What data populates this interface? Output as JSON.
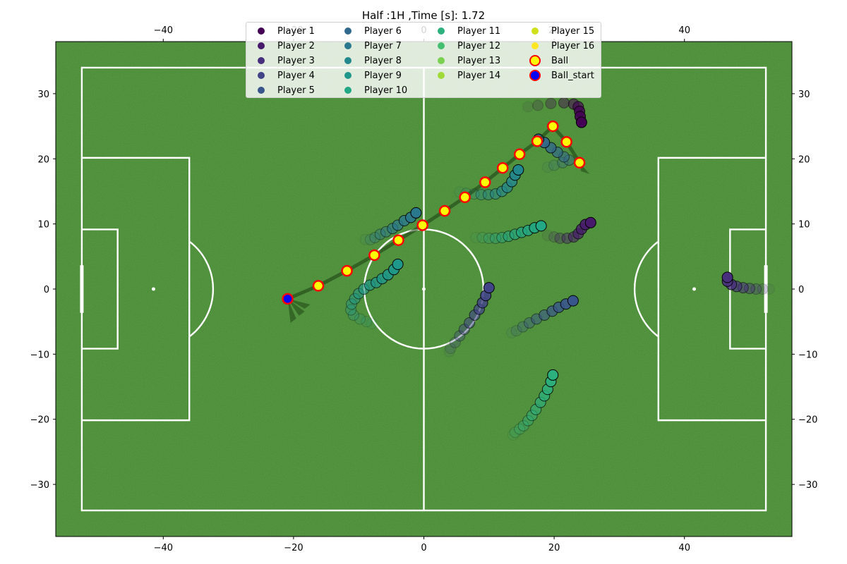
{
  "chart_data": {
    "type": "scatter",
    "title": "Half :1H ,Time [s]: 1.72",
    "xlim": [
      -56.5,
      56.5
    ],
    "ylim": [
      -38,
      38
    ],
    "x_ticks": [
      -40,
      -20,
      0,
      20,
      40
    ],
    "y_ticks": [
      -30,
      -20,
      -10,
      0,
      10,
      20,
      30
    ],
    "x_tick_labels": [
      "−40",
      "−20",
      "0",
      "20",
      "40"
    ],
    "y_tick_labels": [
      "−30",
      "−20",
      "−10",
      "0",
      "10",
      "20",
      "30"
    ],
    "grid": false,
    "legend_placement": "upper-center",
    "legend_columns": 4,
    "pitch": {
      "field_color": "#438a30",
      "line_color": "#ffffff",
      "length": 105,
      "width": 68,
      "center_circle_radius": 9.15,
      "penalty_box": {
        "depth": 16.5,
        "width": 40.3
      },
      "goal_box": {
        "depth": 5.5,
        "width": 18.3
      },
      "penalty_spot": 11,
      "goal_width": 7.32
    },
    "series": [
      {
        "name": "Player 1",
        "color": "#440154",
        "path": [
          [
            24.2,
            25.6
          ],
          [
            24.0,
            26.5
          ],
          [
            23.9,
            27.3
          ],
          [
            23.7,
            28.0
          ],
          [
            23.0,
            28.4
          ],
          [
            21.5,
            28.6
          ],
          [
            19.5,
            28.5
          ],
          [
            17.5,
            28.2
          ],
          [
            16.0,
            28.0
          ]
        ]
      },
      {
        "name": "Player 2",
        "color": "#481a6c",
        "path": [
          [
            25.6,
            10.2
          ],
          [
            24.8,
            9.9
          ],
          [
            24.2,
            9.2
          ],
          [
            23.7,
            8.5
          ],
          [
            23.0,
            8.0
          ],
          [
            22.0,
            7.8
          ],
          [
            20.9,
            7.8
          ],
          [
            20.0,
            8.0
          ],
          [
            19.0,
            8.2
          ]
        ]
      },
      {
        "name": "Player 3",
        "color": "#472f7d",
        "path": [
          [
            46.6,
            1.8
          ],
          [
            46.6,
            1.2
          ],
          [
            47.2,
            0.7
          ],
          [
            48.0,
            0.4
          ],
          [
            49.0,
            0.2
          ],
          [
            50.0,
            0.1
          ],
          [
            51.0,
            0.0
          ],
          [
            52.0,
            0.0
          ],
          [
            53.0,
            0.0
          ]
        ]
      },
      {
        "name": "Player 4",
        "color": "#414487",
        "path": [
          [
            10.0,
            0.2
          ],
          [
            9.5,
            -1.0
          ],
          [
            9.0,
            -2.1
          ],
          [
            8.5,
            -3.1
          ],
          [
            7.8,
            -4.0
          ],
          [
            7.0,
            -5.2
          ],
          [
            6.2,
            -6.2
          ],
          [
            5.5,
            -7.2
          ],
          [
            4.8,
            -8.2
          ],
          [
            4.1,
            -9.1
          ],
          [
            3.9,
            -9.6
          ]
        ]
      },
      {
        "name": "Player 5",
        "color": "#39568c",
        "path": [
          [
            22.9,
            -1.8
          ],
          [
            21.8,
            -2.3
          ],
          [
            20.7,
            -2.8
          ],
          [
            19.7,
            -3.4
          ],
          [
            18.5,
            -4.0
          ],
          [
            17.3,
            -4.6
          ],
          [
            16.2,
            -5.2
          ],
          [
            15.2,
            -5.8
          ],
          [
            14.2,
            -6.4
          ],
          [
            13.5,
            -6.7
          ]
        ]
      },
      {
        "name": "Player 6",
        "color": "#31688e",
        "path": [
          [
            17.6,
            23.0
          ],
          [
            18.5,
            22.5
          ],
          [
            19.5,
            21.7
          ],
          [
            20.5,
            21.0
          ],
          [
            21.5,
            20.3
          ],
          [
            22.3,
            19.8
          ],
          [
            21.3,
            19.4
          ],
          [
            20.0,
            19.0
          ],
          [
            19.0,
            18.7
          ]
        ]
      },
      {
        "name": "Player 7",
        "color": "#2a788e",
        "path": [
          [
            -1.2,
            11.7
          ],
          [
            -2.0,
            11.0
          ],
          [
            -3.0,
            10.5
          ],
          [
            -4.0,
            9.8
          ],
          [
            -4.8,
            9.3
          ],
          [
            -5.8,
            8.8
          ],
          [
            -6.7,
            8.4
          ],
          [
            -7.5,
            7.9
          ],
          [
            -8.2,
            7.6
          ],
          [
            -9.0,
            7.6
          ]
        ]
      },
      {
        "name": "Player 8",
        "color": "#23888e",
        "path": [
          [
            14.5,
            18.3
          ],
          [
            14.0,
            17.5
          ],
          [
            13.5,
            16.5
          ],
          [
            12.8,
            15.6
          ],
          [
            12.0,
            15.0
          ],
          [
            11.0,
            14.6
          ],
          [
            9.9,
            14.5
          ],
          [
            8.8,
            14.5
          ],
          [
            7.7,
            14.6
          ],
          [
            6.5,
            14.7
          ],
          [
            5.5,
            14.9
          ]
        ]
      },
      {
        "name": "Player 9",
        "color": "#1f988b",
        "path": [
          [
            -4.0,
            3.8
          ],
          [
            -4.6,
            3.0
          ],
          [
            -5.5,
            2.2
          ],
          [
            -6.4,
            1.6
          ],
          [
            -7.3,
            1.0
          ],
          [
            -8.3,
            0.6
          ],
          [
            -9.2,
            0.0
          ],
          [
            -10.0,
            -0.7
          ],
          [
            -10.6,
            -1.5
          ],
          [
            -11.1,
            -2.3
          ],
          [
            -11.2,
            -3.2
          ],
          [
            -10.8,
            -4.0
          ],
          [
            -9.8,
            -4.6
          ],
          [
            -8.8,
            -5.0
          ],
          [
            -8.0,
            -5.3
          ]
        ]
      },
      {
        "name": "Player 10",
        "color": "#22a884",
        "path": [
          [
            18.0,
            9.7
          ],
          [
            17.0,
            9.4
          ],
          [
            16.0,
            9.0
          ],
          [
            15.0,
            8.7
          ],
          [
            14.0,
            8.4
          ],
          [
            13.0,
            8.1
          ],
          [
            12.0,
            7.9
          ],
          [
            11.0,
            7.8
          ],
          [
            10.0,
            7.8
          ],
          [
            9.0,
            7.9
          ],
          [
            8.0,
            7.9
          ]
        ]
      },
      {
        "name": "Player 11",
        "color": "#2cb17e",
        "path": [
          [
            19.8,
            -13.2
          ],
          [
            19.5,
            -14.2
          ],
          [
            19.0,
            -15.4
          ],
          [
            18.5,
            -16.4
          ],
          [
            17.9,
            -17.4
          ],
          [
            17.2,
            -18.5
          ],
          [
            16.6,
            -19.4
          ],
          [
            16.0,
            -20.2
          ],
          [
            15.3,
            -21.0
          ],
          [
            14.7,
            -21.5
          ],
          [
            14.0,
            -22.0
          ],
          [
            13.7,
            -22.4
          ]
        ]
      },
      {
        "name": "Player 12",
        "color": "#44bf70",
        "path": []
      },
      {
        "name": "Player 13",
        "color": "#7ad151",
        "path": []
      },
      {
        "name": "Player 14",
        "color": "#a0da39",
        "path": []
      },
      {
        "name": "Player 15",
        "color": "#d0e11c",
        "path": []
      },
      {
        "name": "Player 16",
        "color": "#fde725",
        "path": []
      }
    ],
    "ball": {
      "name": "Ball",
      "face_color": "#ffff00",
      "edge_color": "#ff0000",
      "path": [
        [
          -16.2,
          0.5
        ],
        [
          -11.8,
          2.8
        ],
        [
          -7.6,
          5.2
        ],
        [
          -3.9,
          7.5
        ],
        [
          -0.2,
          9.8
        ],
        [
          3.2,
          12.0
        ],
        [
          6.3,
          14.1
        ],
        [
          9.4,
          16.4
        ],
        [
          12.1,
          18.6
        ],
        [
          14.7,
          20.7
        ],
        [
          17.4,
          22.7
        ],
        [
          19.8,
          25.0
        ],
        [
          21.9,
          22.6
        ],
        [
          23.9,
          19.4
        ]
      ]
    },
    "ball_start": {
      "name": "Ball_start",
      "face_color": "#0000ff",
      "edge_color": "#ff0000",
      "path": [
        [
          -20.9,
          -1.5
        ]
      ]
    }
  }
}
